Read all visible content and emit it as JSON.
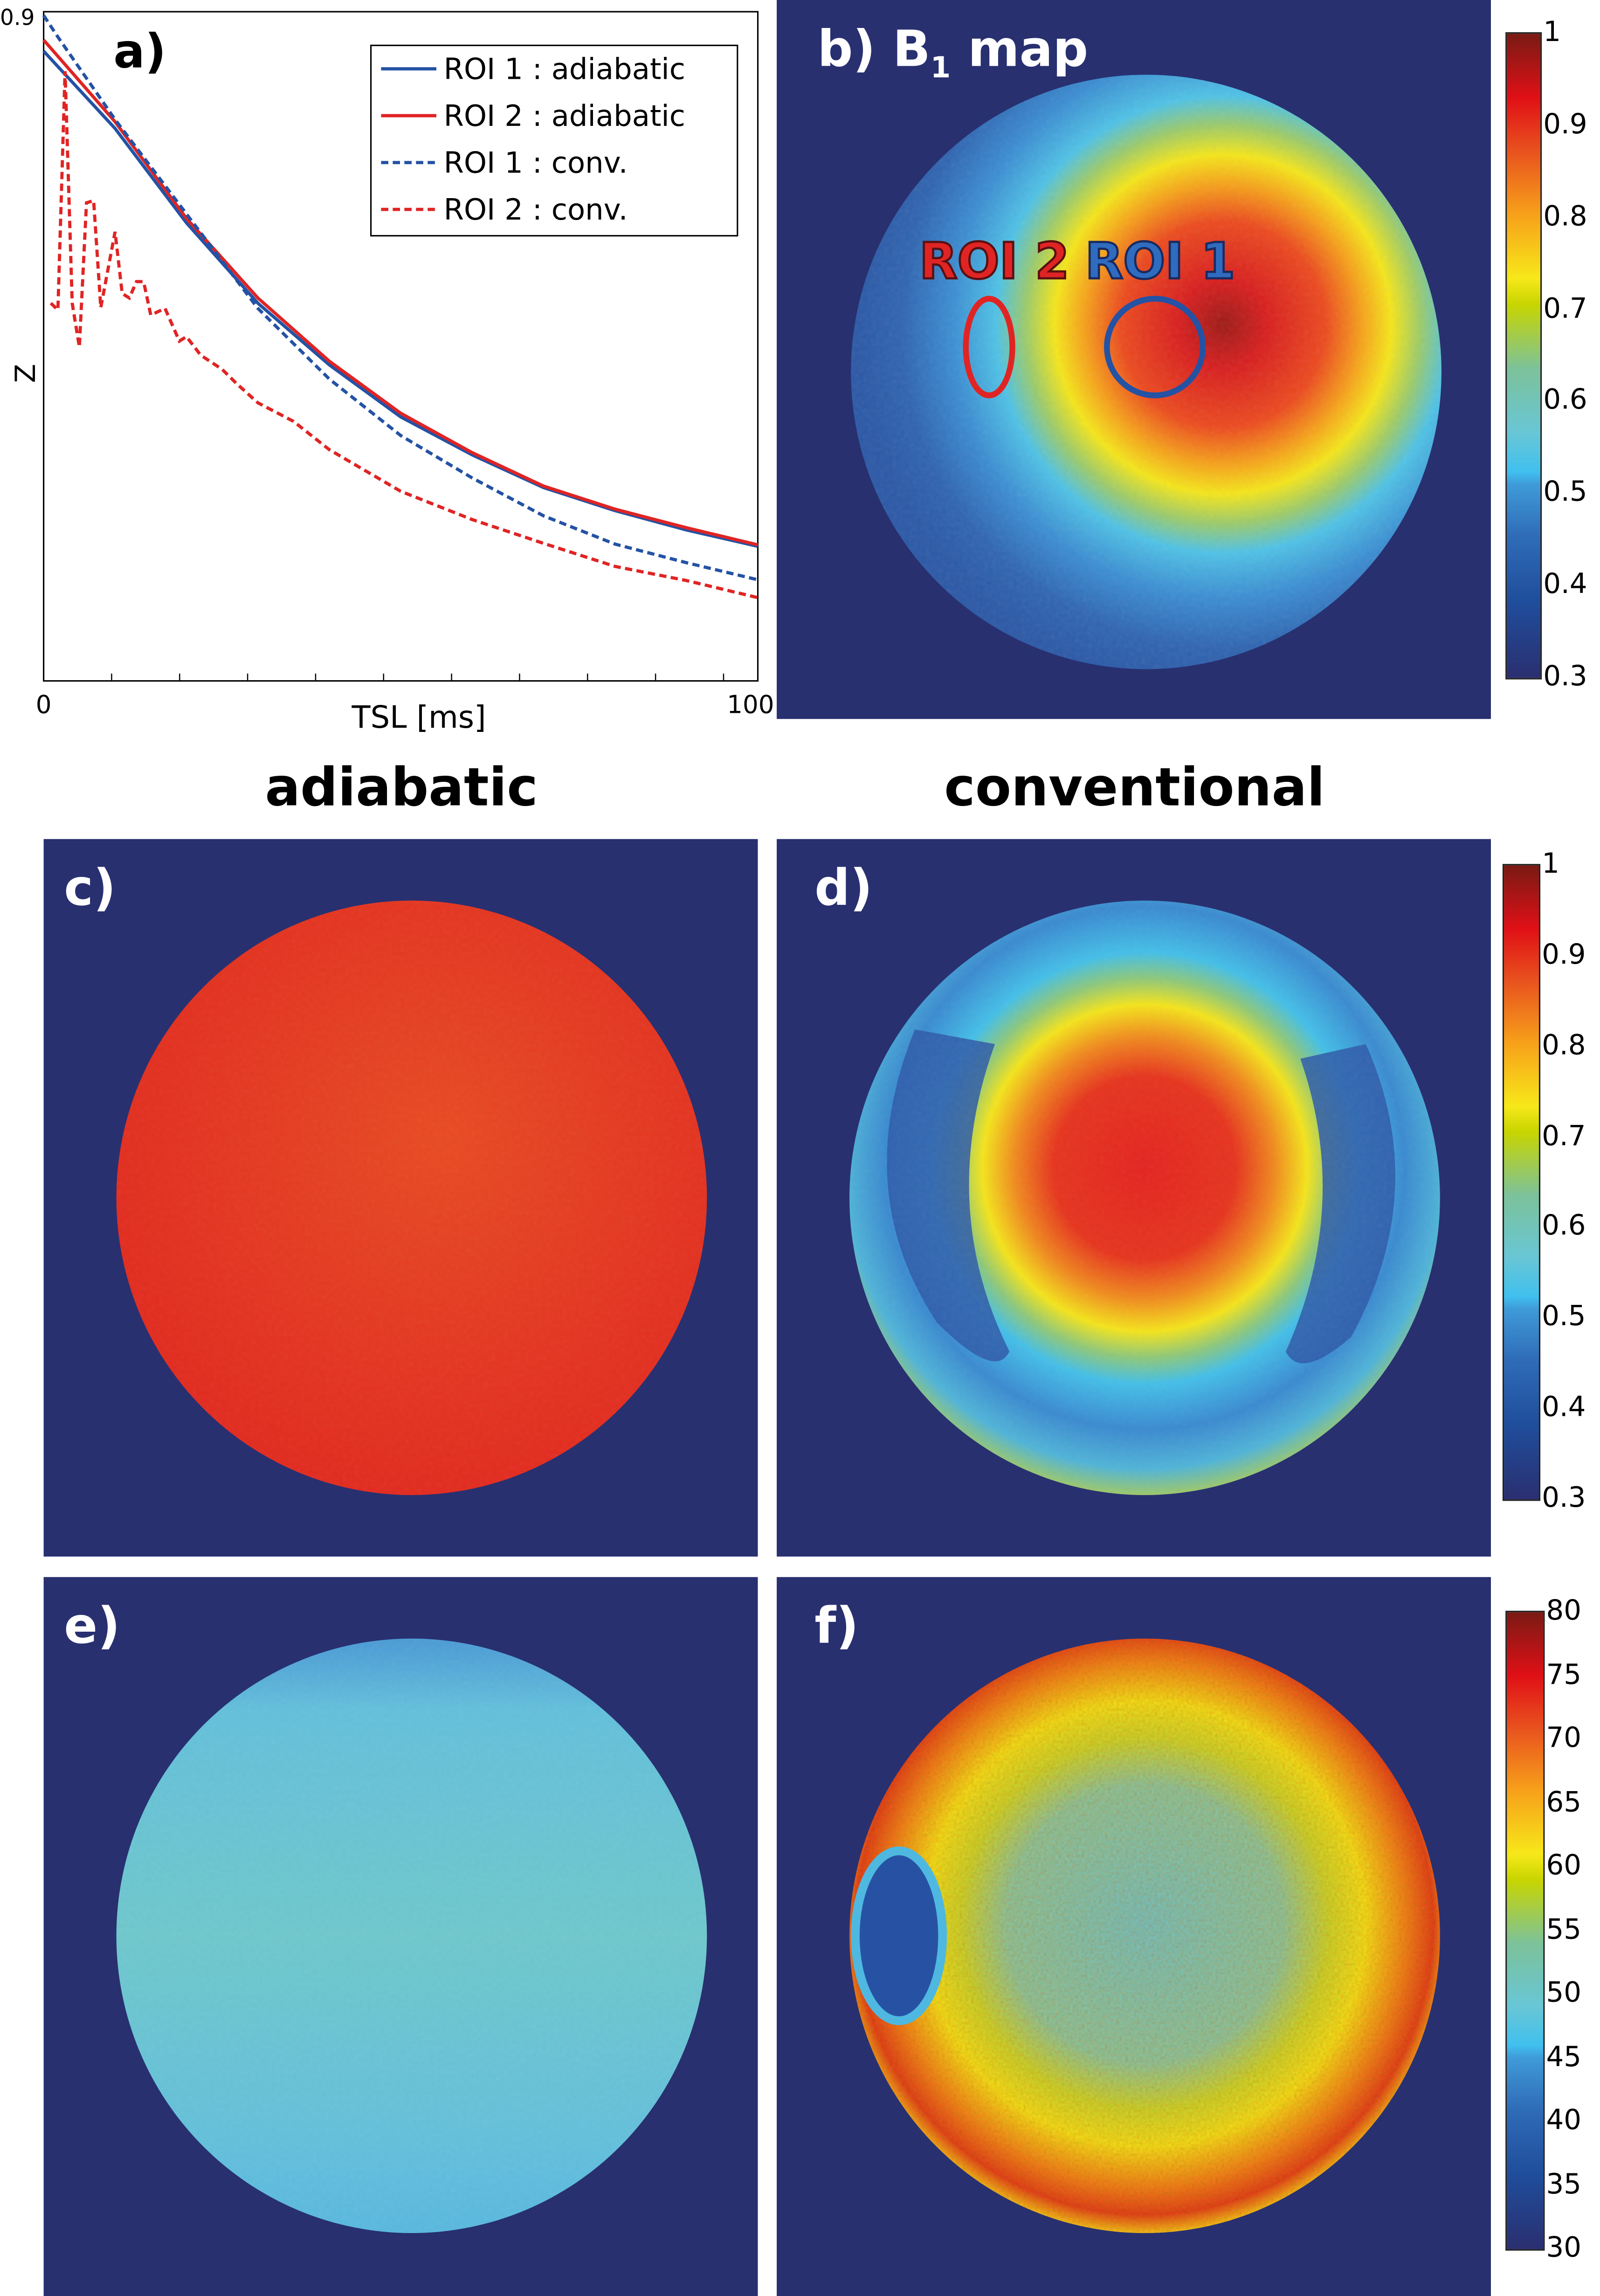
{
  "panel_a": {
    "label": "a)"
  },
  "panel_b": {
    "label": "b)",
    "title_main": "B",
    "title_sub": "1",
    "title_rest": "map",
    "roi1_label": "ROI 1",
    "roi2_label": "ROI 2"
  },
  "panel_c": {
    "label": "c)"
  },
  "panel_d": {
    "label": "d)"
  },
  "panel_e": {
    "label": "e)"
  },
  "panel_f": {
    "label": "f)"
  },
  "column_titles": {
    "left": "adiabatic",
    "right": "conventional"
  },
  "colorbar_b1": {
    "ticks": [
      "1",
      "0.9",
      "0.8",
      "0.7",
      "0.6",
      "0.5",
      "0.4",
      "0.3"
    ],
    "range": [
      0.3,
      1
    ]
  },
  "colorbar_d": {
    "ticks": [
      "1",
      "0.9",
      "0.8",
      "0.7",
      "0.6",
      "0.5",
      "0.4",
      "0.3"
    ],
    "range": [
      0.3,
      1
    ]
  },
  "colorbar_f": {
    "ticks": [
      "80",
      "75",
      "70",
      "65",
      "60",
      "55",
      "50",
      "45",
      "40",
      "35",
      "30"
    ],
    "range": [
      30,
      80
    ]
  },
  "colors": {
    "background_navy": "#283070",
    "roi1": "#2452a4",
    "roi2": "#e02424"
  },
  "chart_data": {
    "type": "line",
    "title": "",
    "xlabel": "TSL [ms]",
    "ylabel": "Z",
    "xlim": [
      0,
      100
    ],
    "ylim": [
      0,
      0.9
    ],
    "x_tick_labels": [
      "0",
      "100"
    ],
    "y_tick_labels": [
      "0.9"
    ],
    "legend_position": "top-right",
    "grid": false,
    "series": [
      {
        "name": "ROI 1 : adiabatic",
        "color": "#2452a4",
        "dash": "solid",
        "x": [
          0,
          10,
          20,
          30,
          40,
          50,
          60,
          70,
          80,
          90,
          100
        ],
        "y": [
          0.847,
          0.743,
          0.616,
          0.508,
          0.425,
          0.355,
          0.304,
          0.26,
          0.229,
          0.203,
          0.181
        ]
      },
      {
        "name": "ROI 2 : adiabatic",
        "color": "#e02424",
        "dash": "solid",
        "x": [
          0,
          10,
          20,
          30,
          40,
          50,
          60,
          70,
          80,
          90,
          100
        ],
        "y": [
          0.862,
          0.752,
          0.622,
          0.515,
          0.43,
          0.36,
          0.307,
          0.262,
          0.231,
          0.206,
          0.183
        ]
      },
      {
        "name": "ROI 1 : conv.",
        "color": "#2452a4",
        "dash": "dashed",
        "x": [
          0,
          2,
          10,
          20,
          30,
          40,
          50,
          60,
          70,
          80,
          90,
          100
        ],
        "y": [
          0.895,
          0.866,
          0.755,
          0.628,
          0.501,
          0.406,
          0.33,
          0.273,
          0.222,
          0.184,
          0.159,
          0.136
        ]
      },
      {
        "name": "ROI 2 : conv.",
        "color": "#e02424",
        "dash": "dashed",
        "x": [
          1,
          2,
          3,
          4,
          5,
          6,
          7,
          8,
          10,
          11,
          12,
          13,
          14,
          15,
          17,
          19,
          20,
          22,
          25,
          27,
          30,
          35,
          40,
          50,
          60,
          70,
          80,
          90,
          100
        ],
        "y": [
          0.508,
          0.499,
          0.82,
          0.508,
          0.449,
          0.643,
          0.646,
          0.502,
          0.604,
          0.521,
          0.515,
          0.537,
          0.537,
          0.492,
          0.501,
          0.457,
          0.463,
          0.438,
          0.419,
          0.4,
          0.374,
          0.349,
          0.311,
          0.255,
          0.217,
          0.185,
          0.154,
          0.135,
          0.112
        ]
      }
    ]
  }
}
